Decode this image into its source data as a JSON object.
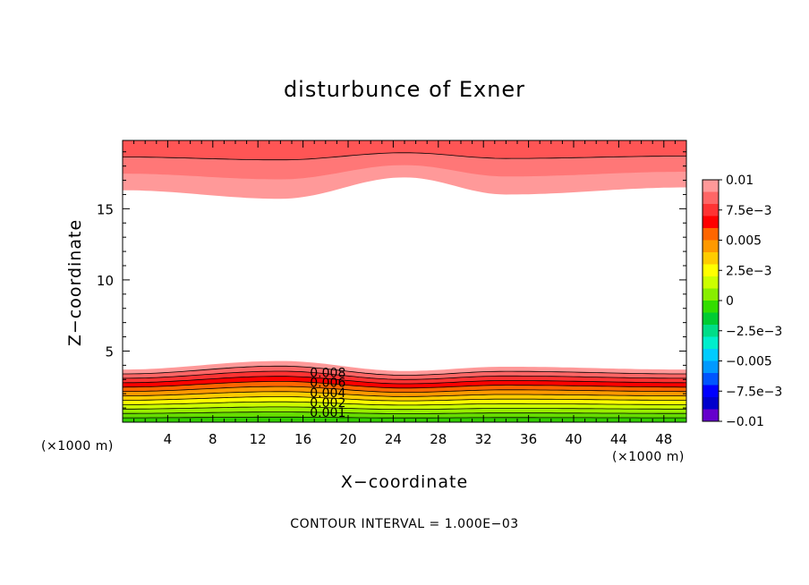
{
  "chart_data": {
    "type": "contour",
    "title": "disturbunce of Exner",
    "xlabel": "X−coordinate",
    "ylabel": "Z−coordinate",
    "x_unit": "(×1000 m)",
    "xlim": [
      0,
      50
    ],
    "ylim": [
      0,
      19.8
    ],
    "x_ticks": [
      4,
      8,
      12,
      16,
      20,
      24,
      28,
      32,
      36,
      40,
      44,
      48
    ],
    "y_ticks": [
      5,
      10,
      15
    ],
    "contour_interval_text": "CONTOUR INTERVAL = 1.000E−03",
    "colorbar": {
      "min": -0.01,
      "max": 0.01,
      "labels": [
        "0.01",
        "7.5e−3",
        "0.005",
        "2.5e−3",
        "0",
        "−2.5e−3",
        "−0.005",
        "−7.5e−3",
        "−0.01"
      ],
      "colors": [
        "#ff9999",
        "#ff6666",
        "#ff3333",
        "#ff0000",
        "#ff6600",
        "#ff9900",
        "#ffcc00",
        "#ffff00",
        "#ccff00",
        "#88ee00",
        "#33dd00",
        "#00cc33",
        "#00dd88",
        "#00eecc",
        "#00ccff",
        "#0099ff",
        "#0055ff",
        "#0000ff",
        "#0000cc",
        "#6600cc"
      ]
    },
    "contour_labels": [
      "0.008",
      "0.006",
      "0.004",
      "0.002",
      "0.001"
    ],
    "lower_boundary_heights": [
      3.7,
      4.3,
      3.6,
      3.9,
      3.7
    ],
    "upper_boundary_heights": [
      16.3,
      15.7,
      17.2,
      16.0,
      16.5
    ],
    "boundary_x": [
      0,
      14,
      25,
      34,
      50
    ]
  }
}
